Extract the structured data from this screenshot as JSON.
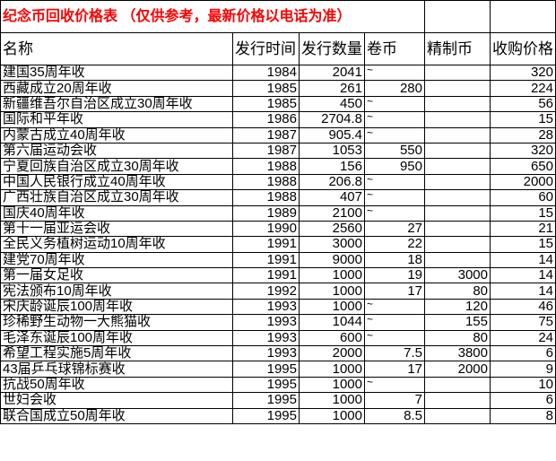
{
  "title": "纪念币回收价格表 （仅供参考，最新价格以电话为准）",
  "headers": [
    "名称",
    "发行时间",
    "发行数量",
    "卷币",
    "精制币",
    "收购价格"
  ],
  "rows": [
    [
      "建国35周年收",
      "1984",
      "2041",
      "~",
      "",
      "320"
    ],
    [
      "西藏成立20周年收",
      "1985",
      "261",
      "280",
      "",
      "224"
    ],
    [
      "新疆维吾尔自治区成立30周年收",
      "1985",
      "450",
      "~",
      "",
      "56"
    ],
    [
      "国际和平年收",
      "1986",
      "2704.8",
      "~",
      "",
      "15"
    ],
    [
      "内蒙古成立40周年收",
      "1987",
      "905.4",
      "~",
      "",
      "28"
    ],
    [
      "第六届运动会收",
      "1987",
      "1053",
      "550",
      "",
      "320"
    ],
    [
      "宁夏回族自治区成立30周年收",
      "1988",
      "156",
      "950",
      "",
      "650"
    ],
    [
      "中国人民银行成立40周年收",
      "1988",
      "206.8",
      "~",
      "",
      "2000"
    ],
    [
      "广西壮族自治区成立30周年收",
      "1988",
      "407",
      "~",
      "",
      "60"
    ],
    [
      "国庆40周年收",
      "1989",
      "2100",
      "~",
      "",
      "15"
    ],
    [
      "第十一届亚运会收",
      "1990",
      "2560",
      "27",
      "",
      "21"
    ],
    [
      "全民义务植树运动10周年收",
      "1991",
      "3000",
      "22",
      "",
      "15"
    ],
    [
      "建党70周年收",
      "1991",
      "9000",
      "18",
      "",
      "14"
    ],
    [
      "第一届女足收",
      "1991",
      "1000",
      "19",
      "3000",
      "14"
    ],
    [
      "宪法颁布10周年收",
      "1992",
      "1000",
      "17",
      "80",
      "14"
    ],
    [
      "宋庆龄诞辰100周年收",
      "1993",
      "1000",
      "~",
      "120",
      "46"
    ],
    [
      "珍稀野生动物一大熊猫收",
      "1993",
      "1044",
      "~",
      "155",
      "75"
    ],
    [
      "毛泽东诞辰100周年收",
      "1993",
      "600",
      "~",
      "80",
      "24"
    ],
    [
      "希望工程实施5周年收",
      "1993",
      "2000",
      "7.5",
      "3800",
      "6"
    ],
    [
      "43届乒乓球锦标赛收",
      "1995",
      "1000",
      "17",
      "2000",
      "9"
    ],
    [
      "抗战50周年收",
      "1995",
      "1000",
      "~",
      "",
      "10"
    ],
    [
      "世妇会收",
      "1995",
      "1000",
      "7",
      "",
      "6"
    ],
    [
      "联合国成立50周年收",
      "1995",
      "1000",
      "8.5",
      "",
      "8"
    ]
  ],
  "colors": {
    "title": "#ff0000",
    "grid": "#000000"
  }
}
